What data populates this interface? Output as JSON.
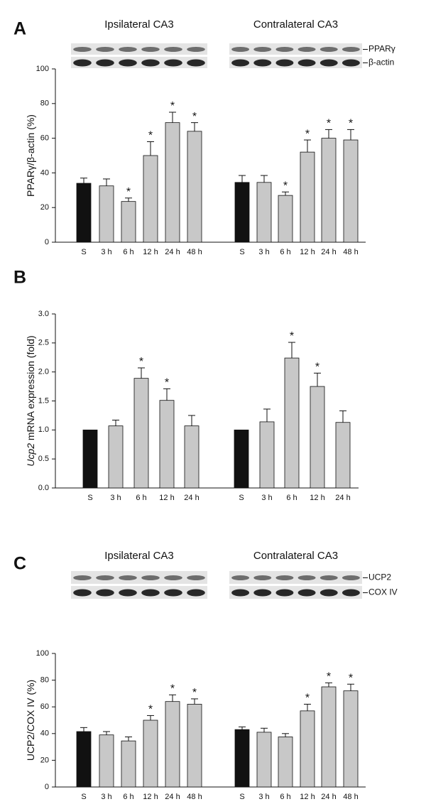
{
  "chart_data": [
    {
      "type": "bar",
      "panel": "A",
      "ylabel": "PPARγ/β-actin (%)",
      "ylim": [
        0,
        100
      ],
      "yticks": [
        0,
        20,
        40,
        60,
        80,
        100
      ],
      "blot_labels": [
        "PPARγ",
        "β-actin"
      ],
      "color": "#c8c8c8",
      "control_color": "#111111",
      "annotation": "*",
      "groups": [
        {
          "name": "Ipsilateral CA3",
          "categories": [
            "S",
            "3 h",
            "6 h",
            "12 h",
            "24 h",
            "48 h"
          ],
          "values": [
            34,
            32.5,
            23.5,
            50,
            69,
            64
          ],
          "errors": [
            3,
            4,
            2,
            8,
            6,
            5
          ],
          "significant": [
            false,
            false,
            true,
            true,
            true,
            true
          ]
        },
        {
          "name": "Contralateral CA3",
          "categories": [
            "S",
            "3 h",
            "6 h",
            "12 h",
            "24 h",
            "48 h"
          ],
          "values": [
            34.5,
            34.5,
            27,
            52,
            60,
            59
          ],
          "errors": [
            4,
            4,
            2,
            7,
            5,
            6
          ],
          "significant": [
            false,
            false,
            true,
            true,
            true,
            true
          ]
        }
      ]
    },
    {
      "type": "bar",
      "panel": "B",
      "ylabel_italic": "Ucp2",
      "ylabel": " mRNA expression (fold)",
      "ylim": [
        0,
        3
      ],
      "yticks": [
        {
          "value": 0,
          "label": "0.0"
        },
        0.5,
        {
          "value": 1,
          "label": "1.0"
        },
        1.5,
        {
          "value": 2,
          "label": "2.0"
        },
        2.5,
        {
          "value": 3,
          "label": "3.0"
        }
      ],
      "color": "#c8c8c8",
      "control_color": "#111111",
      "annotation": "*",
      "groups": [
        {
          "categories": [
            "S",
            "3 h",
            "6 h",
            "12 h",
            "24 h"
          ],
          "values": [
            1.0,
            1.07,
            1.89,
            1.51,
            1.07
          ],
          "errors": [
            null,
            0.1,
            0.18,
            0.2,
            0.18
          ],
          "significant": [
            false,
            false,
            true,
            true,
            false
          ]
        },
        {
          "categories": [
            "S",
            "3 h",
            "6 h",
            "12 h",
            "24 h"
          ],
          "values": [
            1.0,
            1.14,
            2.24,
            1.75,
            1.13
          ],
          "errors": [
            null,
            0.22,
            0.27,
            0.23,
            0.2
          ],
          "significant": [
            false,
            false,
            true,
            true,
            false
          ]
        }
      ]
    },
    {
      "type": "bar",
      "panel": "C",
      "ylabel": "UCP2/COX IV (%)",
      "ylim": [
        0,
        100
      ],
      "yticks": [
        0,
        20,
        40,
        60,
        80,
        100
      ],
      "blot_labels": [
        "UCP2",
        "COX IV"
      ],
      "color": "#c8c8c8",
      "control_color": "#111111",
      "annotation": "*",
      "groups": [
        {
          "name": "Ipsilateral CA3",
          "categories": [
            "S",
            "3 h",
            "6 h",
            "12 h",
            "24 h",
            "48 h"
          ],
          "values": [
            41.5,
            39,
            34.5,
            50,
            64,
            62
          ],
          "errors": [
            3,
            2.5,
            3,
            3.5,
            5,
            4
          ],
          "significant": [
            false,
            false,
            false,
            true,
            true,
            true
          ]
        },
        {
          "name": "Contralateral CA3",
          "categories": [
            "S",
            "3 h",
            "6 h",
            "12 h",
            "24 h",
            "48 h"
          ],
          "values": [
            43,
            41,
            37.5,
            57,
            75,
            72
          ],
          "errors": [
            2,
            3,
            2.5,
            5,
            3,
            5
          ],
          "significant": [
            false,
            false,
            false,
            true,
            true,
            true
          ]
        }
      ]
    }
  ]
}
